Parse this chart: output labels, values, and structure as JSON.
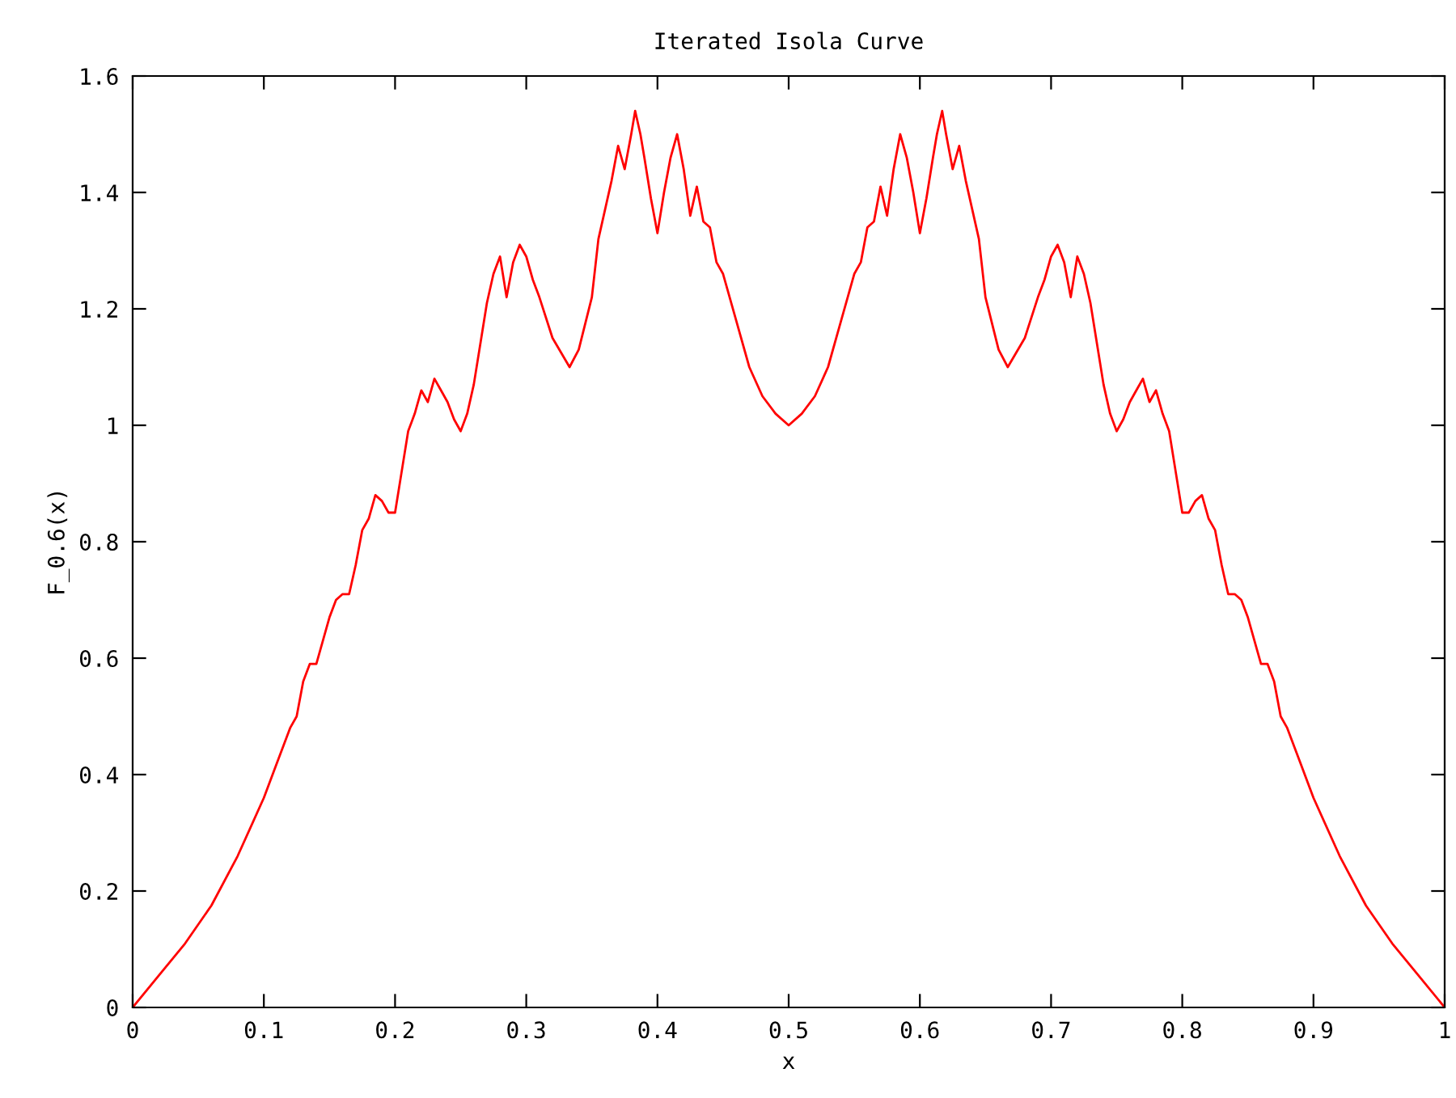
{
  "chart_data": {
    "type": "line",
    "title": "Iterated Isola Curve",
    "xlabel": "x",
    "ylabel": "F_0.6(x)",
    "x": [
      0,
      0.02,
      0.04,
      0.06,
      0.08,
      0.1,
      0.11,
      0.12,
      0.125,
      0.13,
      0.135,
      0.14,
      0.145,
      0.15,
      0.155,
      0.16,
      0.165,
      0.17,
      0.175,
      0.18,
      0.185,
      0.19,
      0.195,
      0.2,
      0.205,
      0.21,
      0.215,
      0.22,
      0.225,
      0.23,
      0.235,
      0.24,
      0.245,
      0.25,
      0.255,
      0.26,
      0.265,
      0.27,
      0.275,
      0.28,
      0.285,
      0.29,
      0.295,
      0.3,
      0.305,
      0.31,
      0.32,
      0.333,
      0.34,
      0.35,
      0.355,
      0.36,
      0.365,
      0.37,
      0.375,
      0.38,
      0.383,
      0.387,
      0.39,
      0.395,
      0.4,
      0.405,
      0.41,
      0.415,
      0.42,
      0.425,
      0.43,
      0.435,
      0.44,
      0.445,
      0.45,
      0.46,
      0.47,
      0.48,
      0.49,
      0.5,
      0.51,
      0.52,
      0.53,
      0.54,
      0.55,
      0.555,
      0.56,
      0.565,
      0.57,
      0.575,
      0.58,
      0.585,
      0.59,
      0.595,
      0.6,
      0.605,
      0.61,
      0.613,
      0.617,
      0.62,
      0.625,
      0.63,
      0.635,
      0.64,
      0.645,
      0.65,
      0.66,
      0.667,
      0.68,
      0.69,
      0.695,
      0.7,
      0.705,
      0.71,
      0.715,
      0.72,
      0.725,
      0.73,
      0.735,
      0.74,
      0.745,
      0.75,
      0.755,
      0.76,
      0.765,
      0.77,
      0.775,
      0.78,
      0.785,
      0.79,
      0.795,
      0.8,
      0.805,
      0.81,
      0.815,
      0.82,
      0.825,
      0.83,
      0.835,
      0.84,
      0.845,
      0.85,
      0.855,
      0.86,
      0.865,
      0.87,
      0.875,
      0.88,
      0.89,
      0.9,
      0.92,
      0.94,
      0.96,
      0.98,
      1
    ],
    "series": [
      {
        "color": "#ff0000",
        "values": [
          0,
          0.055,
          0.11,
          0.175,
          0.26,
          0.36,
          0.42,
          0.48,
          0.5,
          0.56,
          0.59,
          0.59,
          0.63,
          0.67,
          0.7,
          0.71,
          0.71,
          0.76,
          0.82,
          0.84,
          0.88,
          0.87,
          0.85,
          0.85,
          0.92,
          0.99,
          1.02,
          1.06,
          1.04,
          1.08,
          1.06,
          1.04,
          1.01,
          0.99,
          1.02,
          1.07,
          1.14,
          1.21,
          1.26,
          1.29,
          1.22,
          1.28,
          1.31,
          1.29,
          1.25,
          1.22,
          1.15,
          1.1,
          1.13,
          1.22,
          1.32,
          1.37,
          1.42,
          1.48,
          1.44,
          1.5,
          1.54,
          1.5,
          1.46,
          1.39,
          1.33,
          1.4,
          1.46,
          1.5,
          1.44,
          1.36,
          1.41,
          1.35,
          1.34,
          1.28,
          1.26,
          1.18,
          1.1,
          1.05,
          1.02,
          1.0,
          1.02,
          1.05,
          1.1,
          1.18,
          1.26,
          1.28,
          1.34,
          1.35,
          1.41,
          1.36,
          1.44,
          1.5,
          1.46,
          1.4,
          1.33,
          1.39,
          1.46,
          1.5,
          1.54,
          1.5,
          1.44,
          1.48,
          1.42,
          1.37,
          1.32,
          1.22,
          1.13,
          1.1,
          1.15,
          1.22,
          1.25,
          1.29,
          1.31,
          1.28,
          1.22,
          1.29,
          1.26,
          1.21,
          1.14,
          1.07,
          1.02,
          0.99,
          1.01,
          1.04,
          1.06,
          1.08,
          1.04,
          1.06,
          1.02,
          0.99,
          0.92,
          0.85,
          0.85,
          0.87,
          0.88,
          0.84,
          0.82,
          0.76,
          0.71,
          0.71,
          0.7,
          0.67,
          0.63,
          0.59,
          0.59,
          0.56,
          0.5,
          0.48,
          0.42,
          0.36,
          0.26,
          0.175,
          0.11,
          0.055,
          0
        ]
      }
    ],
    "xlim": [
      0,
      1
    ],
    "xticks": [
      0,
      0.1,
      0.2,
      0.3,
      0.4,
      0.5,
      0.6,
      0.7,
      0.8,
      0.9,
      1
    ],
    "ylim": [
      0,
      1.6
    ],
    "yticks": [
      0,
      0.2,
      0.4,
      0.6,
      0.8,
      1,
      1.2,
      1.4,
      1.6
    ],
    "grid": false,
    "legend": false,
    "marker": "none",
    "line_style": "solid"
  }
}
